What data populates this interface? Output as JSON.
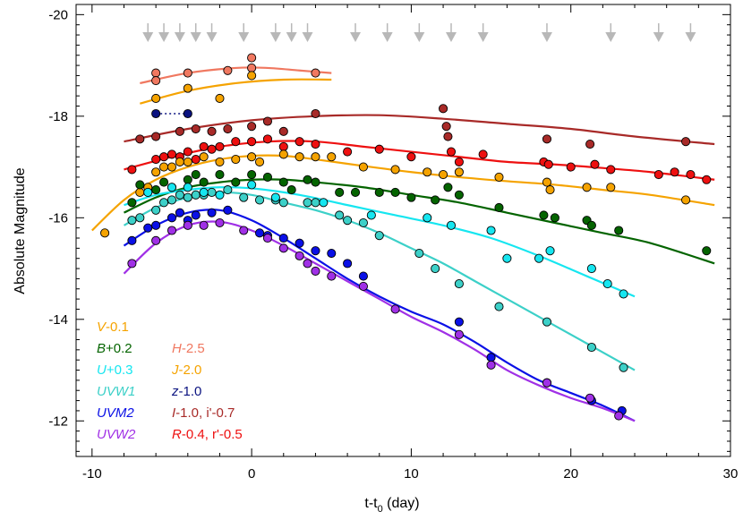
{
  "chart_data": {
    "type": "scatter",
    "xlabel": "t-t",
    "xlabel_sub": "0",
    "xlabel_unit": " (day)",
    "ylabel": "Absolute Magnitude",
    "xlim": [
      -11,
      30
    ],
    "ylim": [
      -11.3,
      -20.2
    ],
    "xticks": [
      -10,
      0,
      10,
      20,
      30
    ],
    "yticks": [
      -12,
      -14,
      -16,
      -18,
      -20
    ],
    "grid": false,
    "legend_position": "bottom-left",
    "arrows_x": [
      -6.5,
      -5.5,
      -4.5,
      -3.5,
      -2.5,
      -0.5,
      1.5,
      2.5,
      3.5,
      6.5,
      8.5,
      10.5,
      12.5,
      14.5,
      18.5,
      22.5,
      25.5,
      27.5
    ],
    "legend": [
      {
        "name": "V",
        "suffix": "-0.1",
        "color": "#f5a300",
        "col": 0,
        "row": 0
      },
      {
        "name": "B",
        "suffix": "+0.2",
        "color": "#046400",
        "col": 0,
        "row": 1
      },
      {
        "name": "U",
        "suffix": "+0.3",
        "color": "#16e6f0",
        "col": 0,
        "row": 2
      },
      {
        "name": "UVW1",
        "suffix": "",
        "color": "#3cd0c8",
        "col": 0,
        "row": 3
      },
      {
        "name": "UVM2",
        "suffix": "",
        "color": "#0a10e6",
        "col": 0,
        "row": 4
      },
      {
        "name": "UVW2",
        "suffix": "",
        "color": "#a030e6",
        "col": 0,
        "row": 5
      },
      {
        "name": "H",
        "suffix": "-2.5",
        "color": "#f07860",
        "col": 1,
        "row": 1
      },
      {
        "name": "J",
        "suffix": "-2.0",
        "color": "#f5a300",
        "col": 1,
        "row": 2
      },
      {
        "name": "z",
        "suffix": "-1.0",
        "color": "#0a1280",
        "col": 1,
        "row": 3
      },
      {
        "name": "I",
        "suffix": "-1.0, i'-0.7",
        "color": "#a82a28",
        "col": 1,
        "row": 4
      },
      {
        "name": "R",
        "suffix": "-0.4, r'-0.5",
        "color": "#ee1010",
        "col": 1,
        "row": 5
      }
    ],
    "series": [
      {
        "name": "H",
        "color": "#f07860",
        "x": [
          -6,
          -6,
          -4,
          -1.5,
          0,
          0,
          4
        ],
        "y": [
          -18.85,
          -18.7,
          -18.85,
          -18.9,
          -18.95,
          -19.15,
          -18.85
        ],
        "fit": [
          [
            -7,
            -18.65
          ],
          [
            -4,
            -18.85
          ],
          [
            -1,
            -18.95
          ],
          [
            1,
            -18.95
          ],
          [
            3,
            -18.9
          ],
          [
            5,
            -18.85
          ]
        ]
      },
      {
        "name": "J",
        "color": "#f5a300",
        "x": [
          -6,
          -4,
          -2,
          0
        ],
        "y": [
          -18.35,
          -18.55,
          -18.35,
          -18.8
        ],
        "fit": [
          [
            -7,
            -18.25
          ],
          [
            -4,
            -18.5
          ],
          [
            -1,
            -18.65
          ],
          [
            2,
            -18.72
          ],
          [
            5,
            -18.72
          ]
        ]
      },
      {
        "name": "z",
        "color": "#0a1280",
        "dotted": true,
        "x": [
          -6,
          -4
        ],
        "y": [
          -18.05,
          -18.05
        ],
        "fit": []
      },
      {
        "name": "I",
        "color": "#a82a28",
        "x": [
          -7,
          -6,
          -4.5,
          -3.5,
          -2.5,
          -1.5,
          0,
          1,
          2,
          4,
          12,
          12.2,
          12.3,
          18.5,
          21.2,
          27.2
        ],
        "y": [
          -17.55,
          -17.6,
          -17.7,
          -17.75,
          -17.7,
          -17.75,
          -17.8,
          -17.9,
          -17.7,
          -18.05,
          -18.15,
          -17.8,
          -17.6,
          -17.55,
          -17.45,
          -17.5
        ],
        "fit": [
          [
            -8,
            -17.5
          ],
          [
            -4,
            -17.75
          ],
          [
            0,
            -17.92
          ],
          [
            4,
            -18.0
          ],
          [
            8,
            -18.02
          ],
          [
            12,
            -17.95
          ],
          [
            16,
            -17.85
          ],
          [
            20,
            -17.75
          ],
          [
            24,
            -17.6
          ],
          [
            29,
            -17.45
          ]
        ]
      },
      {
        "name": "R",
        "color": "#ee1010",
        "x": [
          -7.5,
          -6,
          -5.5,
          -5,
          -4.5,
          -4,
          -3.5,
          -3,
          -2.5,
          -2,
          -1,
          0,
          1,
          2,
          3,
          4,
          6,
          8,
          10,
          12.5,
          13,
          14.5,
          18.3,
          18.6,
          20,
          21.5,
          22.5,
          25.5,
          26.5,
          27.5,
          28.5
        ],
        "y": [
          -16.95,
          -17.15,
          -17.2,
          -17.25,
          -17.2,
          -17.3,
          -17.15,
          -17.4,
          -17.35,
          -17.4,
          -17.5,
          -17.5,
          -17.55,
          -17.4,
          -17.5,
          -17.45,
          -17.3,
          -17.35,
          -17.2,
          -17.3,
          -17.1,
          -17.25,
          -17.1,
          -17.05,
          -17.0,
          -17.05,
          -16.95,
          -16.85,
          -16.9,
          -16.85,
          -16.75
        ],
        "fit": [
          [
            -8,
            -16.95
          ],
          [
            -5,
            -17.2
          ],
          [
            -2,
            -17.4
          ],
          [
            1,
            -17.5
          ],
          [
            4,
            -17.5
          ],
          [
            7,
            -17.4
          ],
          [
            10,
            -17.3
          ],
          [
            13,
            -17.2
          ],
          [
            16,
            -17.1
          ],
          [
            19,
            -17.05
          ],
          [
            22,
            -16.98
          ],
          [
            25,
            -16.9
          ],
          [
            29,
            -16.75
          ]
        ]
      },
      {
        "name": "V",
        "color": "#f5a300",
        "x": [
          -9.2,
          -7,
          -6.5,
          -6,
          -5.5,
          -5,
          -4.5,
          -4,
          -3,
          -2,
          -1,
          0,
          0.5,
          2,
          3,
          4,
          5,
          7,
          9,
          11,
          12,
          13,
          15.5,
          18.5,
          18.7,
          21,
          22.5,
          27.2
        ],
        "y": [
          -15.7,
          -16.5,
          -16.6,
          -16.9,
          -17.0,
          -17.0,
          -17.1,
          -17.1,
          -17.2,
          -17.1,
          -17.15,
          -17.2,
          -17.1,
          -17.25,
          -17.2,
          -17.2,
          -17.2,
          -17.0,
          -16.95,
          -16.9,
          -16.85,
          -16.9,
          -16.8,
          -16.7,
          -16.55,
          -16.6,
          -16.6,
          -16.35
        ],
        "fit": [
          [
            -10,
            -15.75
          ],
          [
            -8,
            -16.35
          ],
          [
            -6,
            -16.75
          ],
          [
            -4,
            -17.0
          ],
          [
            -2,
            -17.15
          ],
          [
            0,
            -17.22
          ],
          [
            2,
            -17.22
          ],
          [
            4,
            -17.15
          ],
          [
            7,
            -17.02
          ],
          [
            10,
            -16.9
          ],
          [
            13,
            -16.8
          ],
          [
            16,
            -16.72
          ],
          [
            19,
            -16.65
          ],
          [
            22,
            -16.55
          ],
          [
            25,
            -16.45
          ],
          [
            29,
            -16.25
          ]
        ]
      },
      {
        "name": "B",
        "color": "#046400",
        "x": [
          -7.5,
          -7,
          -6,
          -5.5,
          -5,
          -4,
          -3.5,
          -3,
          -2,
          -1,
          0,
          1,
          2,
          2.5,
          3.5,
          4,
          5.5,
          6.5,
          8,
          9,
          10,
          11.5,
          12.3,
          13,
          15.5,
          18.3,
          19,
          21,
          21.3,
          23,
          28.5
        ],
        "y": [
          -16.3,
          -16.65,
          -16.55,
          -16.7,
          -16.6,
          -16.75,
          -16.85,
          -16.7,
          -16.85,
          -16.7,
          -16.85,
          -16.8,
          -16.7,
          -16.55,
          -16.75,
          -16.7,
          -16.5,
          -16.5,
          -16.5,
          -16.5,
          -16.4,
          -16.35,
          -16.6,
          -16.45,
          -16.2,
          -16.05,
          -16.0,
          -15.95,
          -15.85,
          -15.75,
          -15.35
        ],
        "fit": [
          [
            -8,
            -16.1
          ],
          [
            -6,
            -16.4
          ],
          [
            -4,
            -16.6
          ],
          [
            -2,
            -16.7
          ],
          [
            0,
            -16.75
          ],
          [
            2,
            -16.75
          ],
          [
            4,
            -16.7
          ],
          [
            7,
            -16.6
          ],
          [
            10,
            -16.45
          ],
          [
            13,
            -16.3
          ],
          [
            16,
            -16.1
          ],
          [
            19,
            -15.9
          ],
          [
            22,
            -15.7
          ],
          [
            25,
            -15.5
          ],
          [
            29,
            -15.1
          ]
        ]
      },
      {
        "name": "UVW1",
        "color": "#3cd0c8",
        "x": [
          -7.5,
          -7,
          -6,
          -5.5,
          -5,
          -4.5,
          -4,
          -3.5,
          -3,
          -2.5,
          -1.5,
          -0.5,
          0.5,
          1.5,
          2,
          3.5,
          4,
          5.5,
          6,
          7,
          8,
          10.5,
          11.5,
          13,
          15.5,
          18.5,
          21.3,
          23.3
        ],
        "y": [
          -15.95,
          -16.0,
          -16.15,
          -16.3,
          -16.35,
          -16.45,
          -16.4,
          -16.45,
          -16.45,
          -16.5,
          -16.55,
          -16.4,
          -16.35,
          -16.35,
          -16.3,
          -16.3,
          -16.3,
          -16.05,
          -15.95,
          -15.9,
          -15.65,
          -15.3,
          -15.0,
          -14.7,
          -14.25,
          -13.95,
          -13.45,
          -13.05
        ],
        "fit": [
          [
            -8,
            -15.85
          ],
          [
            -6,
            -16.2
          ],
          [
            -4,
            -16.4
          ],
          [
            -2,
            -16.5
          ],
          [
            0,
            -16.45
          ],
          [
            2,
            -16.3
          ],
          [
            4,
            -16.15
          ],
          [
            6,
            -15.95
          ],
          [
            8,
            -15.7
          ],
          [
            10,
            -15.4
          ],
          [
            12,
            -15.1
          ],
          [
            14,
            -14.75
          ],
          [
            16,
            -14.4
          ],
          [
            18,
            -14.05
          ],
          [
            20,
            -13.7
          ],
          [
            22,
            -13.35
          ],
          [
            24,
            -13.0
          ]
        ]
      },
      {
        "name": "U",
        "color": "#16e6f0",
        "x": [
          -6.5,
          -5,
          -4,
          -3,
          -2,
          0,
          1.5,
          4.5,
          7.5,
          11,
          12.5,
          15,
          16,
          18,
          18.7,
          21.3,
          22.3,
          23.3
        ],
        "y": [
          -16.5,
          -16.6,
          -16.6,
          -16.5,
          -16.45,
          -16.65,
          -16.4,
          -16.3,
          -16.05,
          -16.0,
          -15.85,
          -15.75,
          -15.2,
          -15.2,
          -15.35,
          -15.0,
          -14.7,
          -14.5
        ],
        "fit": [
          [
            -8,
            -16.25
          ],
          [
            -6,
            -16.45
          ],
          [
            -4,
            -16.55
          ],
          [
            -2,
            -16.6
          ],
          [
            0,
            -16.58
          ],
          [
            3,
            -16.45
          ],
          [
            6,
            -16.25
          ],
          [
            9,
            -16.05
          ],
          [
            12,
            -15.85
          ],
          [
            15,
            -15.6
          ],
          [
            18,
            -15.25
          ],
          [
            21,
            -14.85
          ],
          [
            24,
            -14.45
          ]
        ]
      },
      {
        "name": "UVM2",
        "color": "#0a10e6",
        "x": [
          -7.5,
          -6.5,
          -6,
          -5,
          -4.5,
          -4,
          -3.5,
          -2.5,
          -1.5,
          0.5,
          1,
          2,
          3,
          4,
          5,
          6,
          7,
          13,
          15,
          18.5,
          21.3,
          23.2
        ],
        "y": [
          -15.55,
          -15.8,
          -15.85,
          -16.0,
          -16.1,
          -15.95,
          -16.05,
          -16.1,
          -16.15,
          -15.7,
          -15.65,
          -15.6,
          -15.5,
          -15.35,
          -15.3,
          -15.1,
          -14.85,
          -13.95,
          -13.25,
          -12.75,
          -12.4,
          -12.2
        ],
        "fit": [
          [
            -8,
            -15.45
          ],
          [
            -6,
            -15.85
          ],
          [
            -4,
            -16.1
          ],
          [
            -2,
            -16.15
          ],
          [
            0,
            -15.95
          ],
          [
            2,
            -15.6
          ],
          [
            4,
            -15.2
          ],
          [
            6,
            -14.8
          ],
          [
            8,
            -14.45
          ],
          [
            10,
            -14.15
          ],
          [
            12,
            -13.9
          ],
          [
            14,
            -13.55
          ],
          [
            16,
            -13.15
          ],
          [
            18,
            -12.8
          ],
          [
            20,
            -12.55
          ],
          [
            22,
            -12.3
          ],
          [
            24,
            -12.0
          ]
        ]
      },
      {
        "name": "UVW2",
        "color": "#a030e6",
        "x": [
          -7.5,
          -6,
          -5,
          -4,
          -3,
          -2,
          -0.5,
          1,
          2,
          3,
          3.5,
          4,
          5,
          7,
          9,
          13,
          15,
          18.5,
          21.2,
          23
        ],
        "y": [
          -15.1,
          -15.55,
          -15.75,
          -15.85,
          -15.85,
          -15.9,
          -15.75,
          -15.6,
          -15.4,
          -15.25,
          -15.1,
          -14.95,
          -14.85,
          -14.65,
          -14.2,
          -13.7,
          -13.1,
          -12.75,
          -12.45,
          -12.1
        ],
        "fit": [
          [
            -8,
            -14.9
          ],
          [
            -6,
            -15.5
          ],
          [
            -4,
            -15.85
          ],
          [
            -2,
            -15.92
          ],
          [
            0,
            -15.75
          ],
          [
            2,
            -15.45
          ],
          [
            4,
            -15.1
          ],
          [
            6,
            -14.75
          ],
          [
            8,
            -14.4
          ],
          [
            10,
            -14.05
          ],
          [
            12,
            -13.75
          ],
          [
            14,
            -13.4
          ],
          [
            16,
            -13.0
          ],
          [
            18,
            -12.7
          ],
          [
            20,
            -12.45
          ],
          [
            22,
            -12.25
          ],
          [
            24,
            -12.0
          ]
        ]
      }
    ]
  }
}
